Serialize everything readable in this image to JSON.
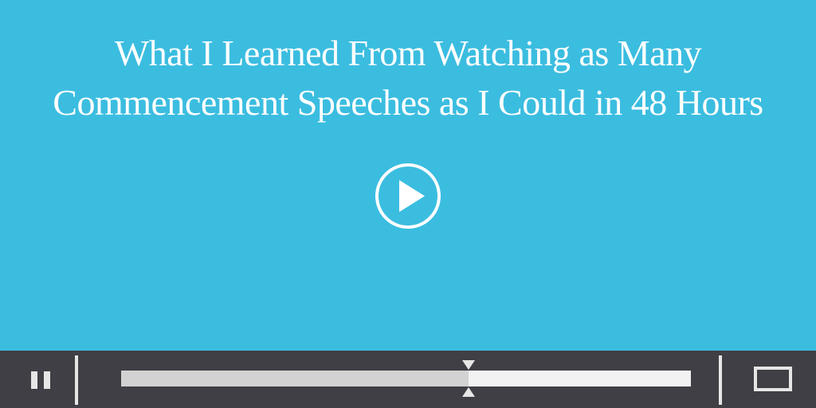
{
  "video": {
    "title_line_1": "What I Learned From Watching as Many",
    "title_line_2": "Commencement Speeches as I Could in 48 Hours",
    "background_color": "#3bbde0"
  },
  "controls": {
    "bar_color": "#3f3f45",
    "pause_icon": "pause-icon",
    "play_icon": "play-icon",
    "fullscreen_icon": "fullscreen-icon",
    "progress": 0.61
  }
}
